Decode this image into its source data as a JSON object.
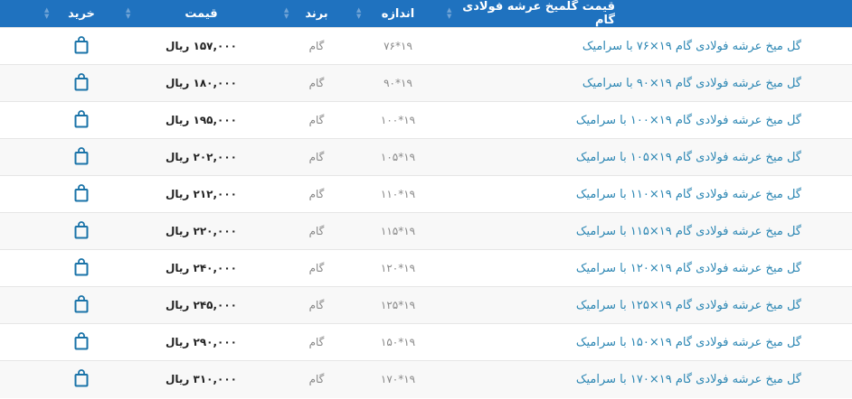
{
  "header": {
    "title": "قیمت گلمیخ عرشه فولادی گام",
    "size": "اندازه",
    "brand": "برند",
    "price": "قیمت",
    "buy": "خرید"
  },
  "accent": "#1f72bf",
  "rows": [
    {
      "title": "گل میخ عرشه فولادی گام ۱۹×۷۶ با سرامیک",
      "size": "۱۹*۷۶",
      "brand": "گام",
      "price": "۱۵۷,۰۰۰ ریال"
    },
    {
      "title": "گل میخ عرشه فولادی گام ۱۹×۹۰ با سرامیک",
      "size": "۱۹*۹۰",
      "brand": "گام",
      "price": "۱۸۰,۰۰۰ ریال"
    },
    {
      "title": "گل میخ عرشه فولادی گام ۱۹×۱۰۰ با سرامیک",
      "size": "۱۹*۱۰۰",
      "brand": "گام",
      "price": "۱۹۵,۰۰۰ ریال"
    },
    {
      "title": "گل میخ عرشه فولادی گام ۱۹×۱۰۵ با سرامیک",
      "size": "۱۹*۱۰۵",
      "brand": "گام",
      "price": "۲۰۲,۰۰۰ ریال"
    },
    {
      "title": "گل میخ عرشه فولادی گام ۱۹×۱۱۰ با سرامیک",
      "size": "۱۹*۱۱۰",
      "brand": "گام",
      "price": "۲۱۲,۰۰۰ ریال"
    },
    {
      "title": "گل میخ عرشه فولادی گام ۱۹×۱۱۵ با سرامیک",
      "size": "۱۹*۱۱۵",
      "brand": "گام",
      "price": "۲۲۰,۰۰۰ ریال"
    },
    {
      "title": "گل میخ عرشه فولادی گام ۱۹×۱۲۰ با سرامیک",
      "size": "۱۹*۱۲۰",
      "brand": "گام",
      "price": "۲۴۰,۰۰۰ ریال"
    },
    {
      "title": "گل میخ عرشه فولادی گام ۱۹×۱۲۵ با سرامیک",
      "size": "۱۹*۱۲۵",
      "brand": "گام",
      "price": "۲۴۵,۰۰۰ ریال"
    },
    {
      "title": "گل میخ عرشه فولادی گام ۱۹×۱۵۰ با سرامیک",
      "size": "۱۹*۱۵۰",
      "brand": "گام",
      "price": "۲۹۰,۰۰۰ ریال"
    },
    {
      "title": "گل میخ عرشه فولادی گام ۱۹×۱۷۰ با سرامیک",
      "size": "۱۹*۱۷۰",
      "brand": "گام",
      "price": "۳۱۰,۰۰۰ ریال"
    }
  ]
}
